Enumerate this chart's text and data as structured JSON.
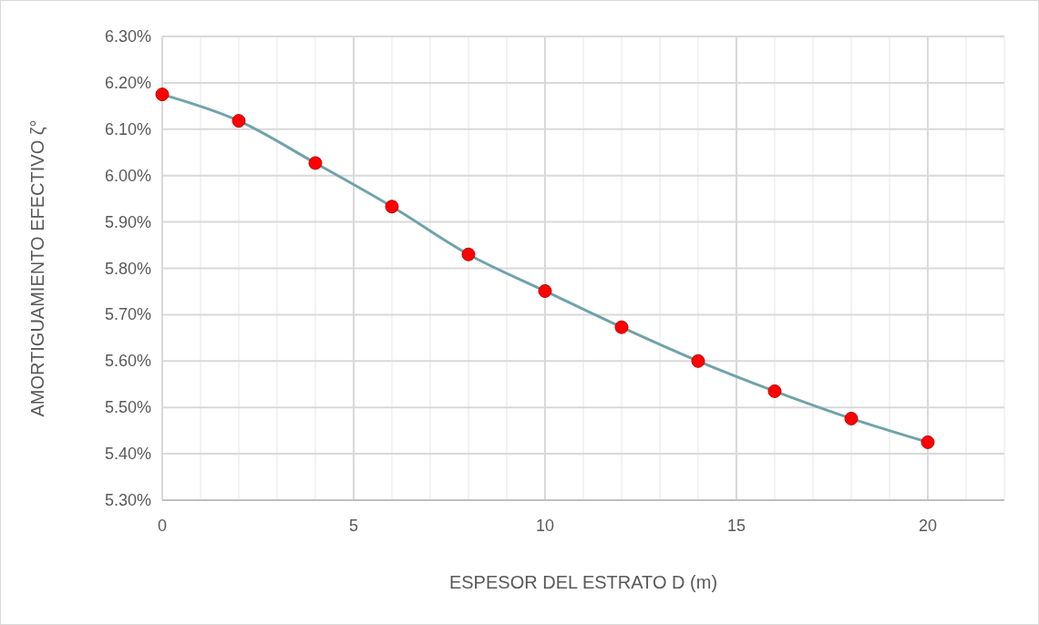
{
  "chart_data": {
    "type": "line",
    "xlabel": "ESPESOR DEL ESTRATO D (m)",
    "ylabel": "AMORTIGUAMIENTO EFECTIVO ζ°",
    "x": [
      0,
      2,
      4,
      6,
      8,
      10,
      12,
      14,
      16,
      18,
      20
    ],
    "series": [
      {
        "color": "#6fa3aa",
        "colors": [
          "#ff0000",
          "#ff0000",
          "#ff0000",
          "#ff0000",
          "#ff0000",
          "#ff0000",
          "#ff0000",
          "#ff0000",
          "#ff0000",
          "#ff0000",
          "#ff0000"
        ],
        "values": [
          6.175,
          6.118,
          6.027,
          5.933,
          5.83,
          5.751,
          5.673,
          5.6,
          5.535,
          5.476,
          5.425
        ]
      }
    ],
    "xlim": [
      0,
      22
    ],
    "xticks": [
      0,
      {
        "value": 1,
        "label": null
      },
      {
        "value": 2,
        "label": null
      },
      {
        "value": 3,
        "label": null
      },
      {
        "value": 4,
        "label": null
      },
      5,
      {
        "value": 6,
        "label": null
      },
      {
        "value": 7,
        "label": null
      },
      {
        "value": 8,
        "label": null
      },
      {
        "value": 9,
        "label": null
      },
      10,
      {
        "value": 11,
        "label": null
      },
      {
        "value": 12,
        "label": null
      },
      {
        "value": 13,
        "label": null
      },
      {
        "value": 14,
        "label": null
      },
      15,
      {
        "value": 16,
        "label": null
      },
      {
        "value": 17,
        "label": null
      },
      {
        "value": 18,
        "label": null
      },
      {
        "value": 19,
        "label": null
      },
      20,
      {
        "value": 21,
        "label": null
      },
      {
        "value": 22,
        "label": null
      }
    ],
    "ylim": [
      5.3,
      6.3
    ],
    "yticks": [
      {
        "value": 5.3,
        "label": "5.30%"
      },
      {
        "value": 5.4,
        "label": "5.40%"
      },
      {
        "value": 5.5,
        "label": "5.50%"
      },
      {
        "value": 5.6,
        "label": "5.60%"
      },
      {
        "value": 5.7,
        "label": "5.70%"
      },
      {
        "value": 5.8,
        "label": "5.80%"
      },
      {
        "value": 5.9,
        "label": "5.90%"
      },
      {
        "value": 6.0,
        "label": "6.00%"
      },
      {
        "value": 6.1,
        "label": "6.10%"
      },
      {
        "value": 6.2,
        "label": "6.20%"
      },
      {
        "value": 6.3,
        "label": "6.30%"
      }
    ],
    "grid": true,
    "marker": "circle",
    "line_style": "solid"
  }
}
